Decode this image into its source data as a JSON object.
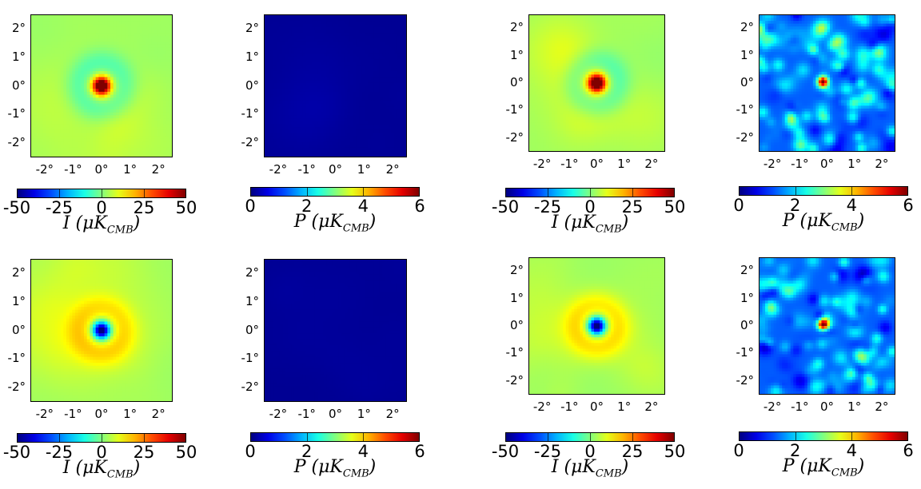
{
  "chart_data": [
    {
      "type": "heatmap",
      "kind": "intensity",
      "center": "hot",
      "colorbar_ticks": [
        "-50",
        "-25",
        "0",
        "25",
        "50"
      ],
      "colorbar_range": [
        -50,
        50
      ],
      "colorbar_label": "I",
      "colorbar_unit": "(μK",
      "colorbar_sub": "CMB",
      "y_ticks": [
        "2°",
        "1°",
        "0°",
        "-1°",
        "-2°"
      ],
      "x_ticks": [
        "-2°",
        "-1°",
        "0°",
        "1°",
        "2°"
      ],
      "xlim": [
        -2.5,
        2.5
      ],
      "ylim": [
        -2.5,
        2.5
      ]
    },
    {
      "type": "heatmap",
      "kind": "flat",
      "colorbar_ticks": [
        "0",
        "2",
        "4",
        "6"
      ],
      "colorbar_range": [
        0,
        6
      ],
      "colorbar_label": "P",
      "colorbar_unit": "(μK",
      "colorbar_sub": "CMB",
      "y_ticks": [
        "2°",
        "1°",
        "0°",
        "-1°",
        "-2°"
      ],
      "x_ticks": [
        "-2°",
        "-1°",
        "0°",
        "1°",
        "2°"
      ],
      "xlim": [
        -2.5,
        2.5
      ],
      "ylim": [
        -2.5,
        2.5
      ]
    },
    {
      "type": "heatmap",
      "kind": "intensity",
      "center": "hot",
      "colorbar_ticks": [
        "-50",
        "-25",
        "0",
        "25",
        "50"
      ],
      "colorbar_range": [
        -50,
        50
      ],
      "colorbar_label": "I",
      "colorbar_unit": "(μK",
      "colorbar_sub": "CMB",
      "y_ticks": [
        "2°",
        "1°",
        "0°",
        "-1°",
        "-2°"
      ],
      "x_ticks": [
        "-2°",
        "-1°",
        "0°",
        "1°",
        "2°"
      ],
      "xlim": [
        -2.5,
        2.5
      ],
      "ylim": [
        -2.5,
        2.5
      ]
    },
    {
      "type": "heatmap",
      "kind": "noise",
      "colorbar_ticks": [
        "0",
        "2",
        "4",
        "6"
      ],
      "colorbar_range": [
        0,
        6
      ],
      "colorbar_label": "P",
      "colorbar_unit": "(μK",
      "colorbar_sub": "CMB",
      "y_ticks": [
        "2°",
        "1°",
        "0°",
        "-1°",
        "-2°"
      ],
      "x_ticks": [
        "-2°",
        "-1°",
        "0°",
        "1°",
        "2°"
      ],
      "xlim": [
        -2.5,
        2.5
      ],
      "ylim": [
        -2.5,
        2.5
      ]
    },
    {
      "type": "heatmap",
      "kind": "intensity",
      "center": "cold",
      "colorbar_ticks": [
        "-50",
        "-25",
        "0",
        "25",
        "50"
      ],
      "colorbar_range": [
        -50,
        50
      ],
      "colorbar_label": "I",
      "colorbar_unit": "(μK",
      "colorbar_sub": "CMB",
      "y_ticks": [
        "2°",
        "1°",
        "0°",
        "-1°",
        "-2°"
      ],
      "x_ticks": [
        "-2°",
        "-1°",
        "0°",
        "1°",
        "2°"
      ],
      "xlim": [
        -2.5,
        2.5
      ],
      "ylim": [
        -2.5,
        2.5
      ]
    },
    {
      "type": "heatmap",
      "kind": "flat",
      "colorbar_ticks": [
        "0",
        "2",
        "4",
        "6"
      ],
      "colorbar_range": [
        0,
        6
      ],
      "colorbar_label": "P",
      "colorbar_unit": "(μK",
      "colorbar_sub": "CMB",
      "y_ticks": [
        "2°",
        "1°",
        "0°",
        "-1°",
        "-2°"
      ],
      "x_ticks": [
        "-2°",
        "-1°",
        "0°",
        "1°",
        "2°"
      ],
      "xlim": [
        -2.5,
        2.5
      ],
      "ylim": [
        -2.5,
        2.5
      ]
    },
    {
      "type": "heatmap",
      "kind": "intensity",
      "center": "cold",
      "colorbar_ticks": [
        "-50",
        "-25",
        "0",
        "25",
        "50"
      ],
      "colorbar_range": [
        -50,
        50
      ],
      "colorbar_label": "I",
      "colorbar_unit": "(μK",
      "colorbar_sub": "CMB",
      "y_ticks": [
        "2°",
        "1°",
        "0°",
        "-1°",
        "-2°"
      ],
      "x_ticks": [
        "-2°",
        "-1°",
        "0°",
        "1°",
        "2°"
      ],
      "xlim": [
        -2.5,
        2.5
      ],
      "ylim": [
        -2.5,
        2.5
      ]
    },
    {
      "type": "heatmap",
      "kind": "noise",
      "colorbar_ticks": [
        "0",
        "2",
        "4",
        "6"
      ],
      "colorbar_range": [
        0,
        6
      ],
      "colorbar_label": "P",
      "colorbar_unit": "(μK",
      "colorbar_sub": "CMB",
      "y_ticks": [
        "2°",
        "1°",
        "0°",
        "-1°",
        "-2°"
      ],
      "x_ticks": [
        "-2°",
        "-1°",
        "0°",
        "1°",
        "2°"
      ],
      "xlim": [
        -2.5,
        2.5
      ],
      "ylim": [
        -2.5,
        2.5
      ]
    }
  ],
  "colors": {
    "colormap": "jet"
  }
}
